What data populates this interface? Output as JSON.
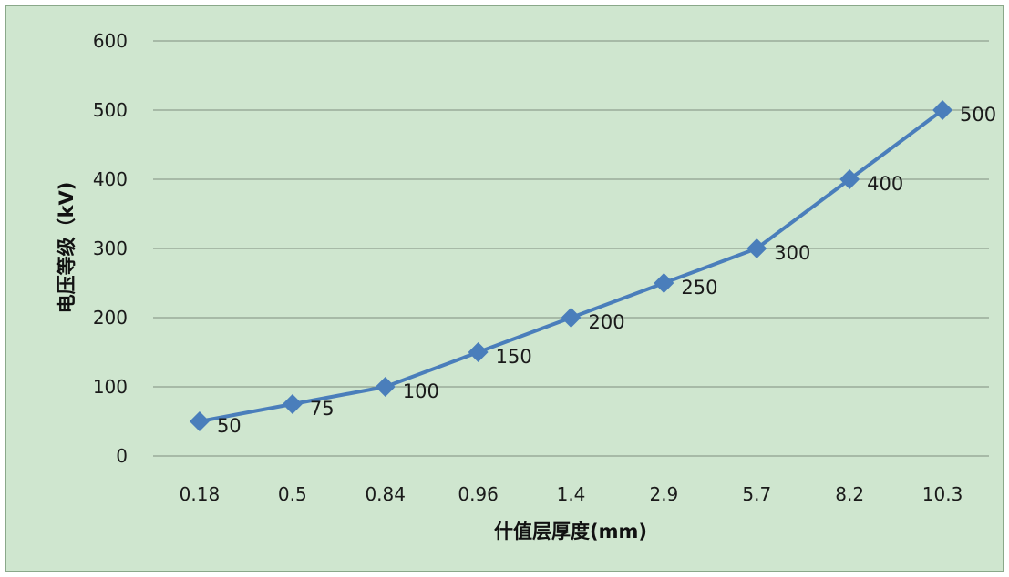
{
  "chart_data": {
    "type": "line",
    "categories": [
      "0.18",
      "0.5",
      "0.84",
      "0.96",
      "1.4",
      "2.9",
      "5.7",
      "8.2",
      "10.3"
    ],
    "series": [
      {
        "values": [
          50,
          75,
          100,
          150,
          200,
          250,
          300,
          400,
          500
        ]
      }
    ],
    "data_labels": [
      "50",
      "75",
      "100",
      "150",
      "200",
      "250",
      "300",
      "400",
      "500"
    ],
    "xlabel": "什值层厚度(mm)",
    "ylabel": "电压等级（kV)",
    "ylim": [
      0,
      600
    ],
    "yticks": [
      "0",
      "100",
      "200",
      "300",
      "400",
      "500",
      "600"
    ],
    "grid": true,
    "marker": "diamond",
    "colors": {
      "line": "#4a7ebb",
      "background": "#cfe6cf",
      "grid": "#7f8f7f"
    }
  }
}
